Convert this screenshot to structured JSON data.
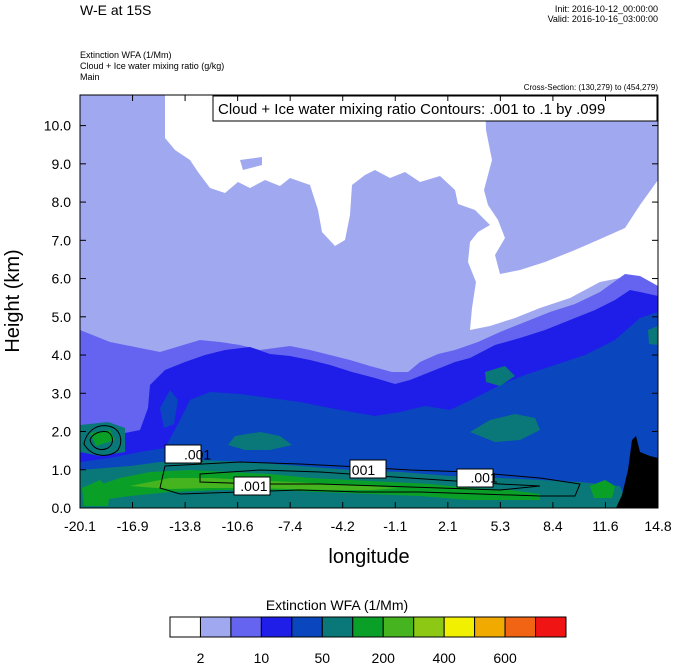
{
  "header": {
    "title": "W-E at 15S",
    "init": "Init: 2016-10-12_00:00:00",
    "valid": "Valid: 2016-10-16_03:00:00"
  },
  "fields": [
    "Extinction WFA   (1/Mm)",
    "Cloud + Ice water mixing ratio   (g/kg)",
    "Main"
  ],
  "cross_section": "Cross-Section: (130,279) to (454,279)",
  "contour_info": "Cloud + Ice water mixing ratio Contours: .001 to .1 by .099",
  "chart_data": {
    "type": "heatmap",
    "xlabel": "longitude",
    "ylabel": "Height (km)",
    "x_ticks": [
      "-20.1",
      "-16.9",
      "-13.8",
      "-10.6",
      "-7.4",
      "-4.2",
      "-1.1",
      "2.1",
      "5.3",
      "8.4",
      "11.6",
      "14.8"
    ],
    "y_ticks": [
      "0.0",
      "1.0",
      "2.0",
      "3.0",
      "4.0",
      "5.0",
      "6.0",
      "7.0",
      "8.0",
      "9.0",
      "10.0"
    ],
    "xlim": [
      -20.1,
      14.8
    ],
    "ylim": [
      0,
      10.8
    ],
    "contour_labels": [
      {
        "text": ".001",
        "x": -13.0,
        "y": 1.4
      },
      {
        "text": ".001",
        "x": -9.6,
        "y": 0.58
      },
      {
        "text": ".001",
        "x": -3.1,
        "y": 1.0
      },
      {
        "text": ".001",
        "x": 4.3,
        "y": 0.8
      }
    ],
    "colorbar": {
      "title": "Extinction WFA  (1/Mm)",
      "colors": [
        "#ffffff",
        "#a0a8f0",
        "#6464f0",
        "#1e1ee8",
        "#0a46be",
        "#0a7878",
        "#0aa028",
        "#46b41e",
        "#8cc814",
        "#f0f000",
        "#f0aa00",
        "#f06414",
        "#f01414"
      ],
      "labels": [
        "2",
        "10",
        "50",
        "200",
        "400",
        "600"
      ]
    }
  }
}
